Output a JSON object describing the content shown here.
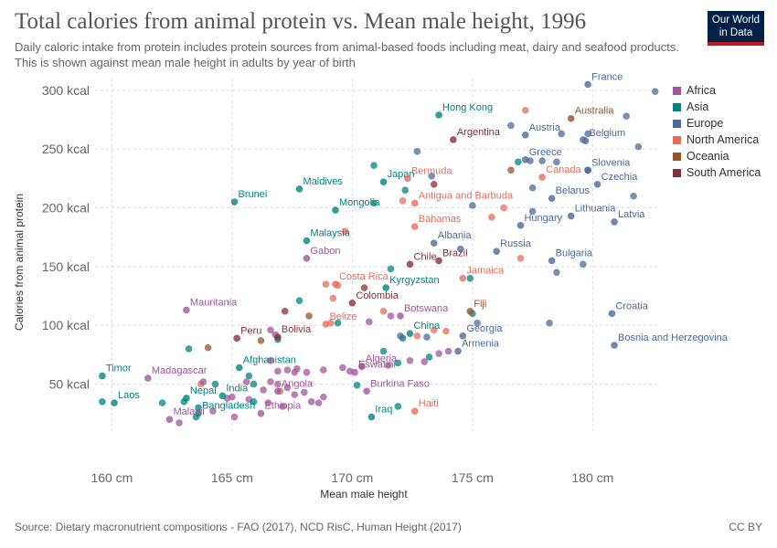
{
  "header": {
    "title": "Total calories from animal protein vs. Mean male height, 1996",
    "subtitle": "Daily caloric intake from protein includes protein sources from animal-based foods including meat, dairy and seafood products. This is shown against mean male height in adults by year of birth",
    "logo_line1": "Our World",
    "logo_line2": "in Data"
  },
  "footer": {
    "source": "Source: Dietary macronutrient compositions - FAO (2017), NCD RisC, Human Height (2017)",
    "license": "CC BY"
  },
  "legend": [
    {
      "name": "Africa",
      "color": "#a2559c"
    },
    {
      "name": "Asia",
      "color": "#00847e"
    },
    {
      "name": "Europe",
      "color": "#4c6a9c"
    },
    {
      "name": "North America",
      "color": "#e56e5a"
    },
    {
      "name": "Oceania",
      "color": "#9a5129"
    },
    {
      "name": "South America",
      "color": "#883039"
    }
  ],
  "colors": {
    "Africa": "#a2559c",
    "Asia": "#00847e",
    "Europe": "#4c6a9c",
    "North America": "#e56e5a",
    "Oceania": "#9a5129",
    "South America": "#883039"
  },
  "chart_data": {
    "type": "scatter",
    "title": "Total calories from animal protein vs. Mean male height, 1996",
    "xlabel": "Mean male height",
    "ylabel": "Calories from animal protein",
    "xlim": [
      159.3,
      182.8
    ],
    "ylim": [
      10,
      310
    ],
    "xticks": [
      160,
      165,
      170,
      175,
      180
    ],
    "xtick_labels": [
      "160 cm",
      "165 cm",
      "170 cm",
      "175 cm",
      "180 cm"
    ],
    "yticks": [
      50,
      100,
      150,
      200,
      250,
      300
    ],
    "ytick_labels": [
      "50 kcal",
      "100 kcal",
      "150 kcal",
      "200 kcal",
      "250 kcal",
      "300 kcal"
    ],
    "grid": true,
    "legend_position": "right",
    "labeled_points": [
      {
        "label": "France",
        "region": "Europe",
        "x": 179.8,
        "y": 305
      },
      {
        "label": "Hong Kong",
        "region": "Asia",
        "x": 173.6,
        "y": 279
      },
      {
        "label": "Australia",
        "region": "Oceania",
        "x": 179.1,
        "y": 276
      },
      {
        "label": "Austria",
        "region": "Europe",
        "x": 177.2,
        "y": 262
      },
      {
        "label": "Argentina",
        "region": "South America",
        "x": 174.2,
        "y": 258
      },
      {
        "label": "Belgium",
        "region": "Europe",
        "x": 179.7,
        "y": 257
      },
      {
        "label": "Greece",
        "region": "Europe",
        "x": 177.2,
        "y": 241
      },
      {
        "label": "Slovenia",
        "region": "Europe",
        "x": 179.8,
        "y": 232
      },
      {
        "label": "Canada",
        "region": "North America",
        "x": 177.9,
        "y": 226
      },
      {
        "label": "Japan",
        "region": "Asia",
        "x": 171.3,
        "y": 222
      },
      {
        "label": "Bermuda",
        "region": "North America",
        "x": 172.3,
        "y": 225
      },
      {
        "label": "Czechia",
        "region": "Europe",
        "x": 180.2,
        "y": 220
      },
      {
        "label": "Maldives",
        "region": "Asia",
        "x": 167.8,
        "y": 216
      },
      {
        "label": "Brunei",
        "region": "Asia",
        "x": 165.1,
        "y": 205
      },
      {
        "label": "Belarus",
        "region": "Europe",
        "x": 178.3,
        "y": 208
      },
      {
        "label": "Antigua and Barbuda",
        "region": "North America",
        "x": 172.6,
        "y": 204
      },
      {
        "label": "Mongolia",
        "region": "Asia",
        "x": 169.3,
        "y": 198
      },
      {
        "label": "Lithuania",
        "region": "Europe",
        "x": 179.1,
        "y": 193
      },
      {
        "label": "Latvia",
        "region": "Europe",
        "x": 180.9,
        "y": 188
      },
      {
        "label": "Hungary",
        "region": "Europe",
        "x": 177.0,
        "y": 185
      },
      {
        "label": "Bahamas",
        "region": "North America",
        "x": 172.6,
        "y": 184
      },
      {
        "label": "Malaysia",
        "region": "Asia",
        "x": 168.1,
        "y": 172
      },
      {
        "label": "Albania",
        "region": "Europe",
        "x": 173.4,
        "y": 170
      },
      {
        "label": "Russia",
        "region": "Europe",
        "x": 176.0,
        "y": 163
      },
      {
        "label": "Gabon",
        "region": "Africa",
        "x": 168.1,
        "y": 157
      },
      {
        "label": "Brazil",
        "region": "South America",
        "x": 173.6,
        "y": 155
      },
      {
        "label": "Bulgaria",
        "region": "Europe",
        "x": 178.3,
        "y": 155
      },
      {
        "label": "Chile",
        "region": "South America",
        "x": 172.4,
        "y": 152
      },
      {
        "label": "Jamaica",
        "region": "North America",
        "x": 174.6,
        "y": 140
      },
      {
        "label": "Costa Rica",
        "region": "North America",
        "x": 169.3,
        "y": 135
      },
      {
        "label": "Kyrgyzstan",
        "region": "Asia",
        "x": 171.4,
        "y": 132
      },
      {
        "label": "Colombia",
        "region": "South America",
        "x": 170.0,
        "y": 119
      },
      {
        "label": "Mauritania",
        "region": "Africa",
        "x": 163.1,
        "y": 113
      },
      {
        "label": "Fiji",
        "region": "Oceania",
        "x": 174.9,
        "y": 112
      },
      {
        "label": "Botswana",
        "region": "Africa",
        "x": 172.0,
        "y": 108
      },
      {
        "label": "Croatia",
        "region": "Europe",
        "x": 180.8,
        "y": 110
      },
      {
        "label": "Belize",
        "region": "North America",
        "x": 168.9,
        "y": 101
      },
      {
        "label": "China",
        "region": "Asia",
        "x": 172.4,
        "y": 93
      },
      {
        "label": "Georgia",
        "region": "Europe",
        "x": 174.6,
        "y": 91
      },
      {
        "label": "Peru",
        "region": "South America",
        "x": 165.2,
        "y": 89
      },
      {
        "label": "Bolivia",
        "region": "South America",
        "x": 166.9,
        "y": 90
      },
      {
        "label": "Bosnia and Herzegovina",
        "region": "Europe",
        "x": 180.9,
        "y": 83
      },
      {
        "label": "Armenia",
        "region": "Europe",
        "x": 174.4,
        "y": 78
      },
      {
        "label": "Afghanistan",
        "region": "Asia",
        "x": 165.3,
        "y": 64
      },
      {
        "label": "Algeria",
        "region": "Africa",
        "x": 170.4,
        "y": 65
      },
      {
        "label": "Eswatini",
        "region": "Africa",
        "x": 170.1,
        "y": 60
      },
      {
        "label": "Timor",
        "region": "Asia",
        "x": 159.6,
        "y": 57
      },
      {
        "label": "Madagascar",
        "region": "Africa",
        "x": 161.5,
        "y": 55
      },
      {
        "label": "India",
        "region": "Asia",
        "x": 164.6,
        "y": 40
      },
      {
        "label": "Angola",
        "region": "Africa",
        "x": 166.9,
        "y": 44
      },
      {
        "label": "Burkina Faso",
        "region": "Africa",
        "x": 170.6,
        "y": 44
      },
      {
        "label": "Laos",
        "region": "Asia",
        "x": 160.1,
        "y": 34
      },
      {
        "label": "Nepal",
        "region": "Asia",
        "x": 163.1,
        "y": 38
      },
      {
        "label": "Haiti",
        "region": "North America",
        "x": 172.6,
        "y": 27
      },
      {
        "label": "Bangladesh",
        "region": "Asia",
        "x": 163.6,
        "y": 25
      },
      {
        "label": "Iraq",
        "region": "Asia",
        "x": 170.8,
        "y": 22
      },
      {
        "label": "Ethiopia",
        "region": "Africa",
        "x": 166.2,
        "y": 25
      },
      {
        "label": "Malawi",
        "region": "Africa",
        "x": 162.4,
        "y": 20
      }
    ],
    "unlabeled_points": [
      {
        "region": "Europe",
        "x": 182.6,
        "y": 299
      },
      {
        "region": "North America",
        "x": 177.2,
        "y": 283
      },
      {
        "region": "Europe",
        "x": 176.6,
        "y": 270
      },
      {
        "region": "Europe",
        "x": 181.4,
        "y": 278
      },
      {
        "region": "Europe",
        "x": 179.8,
        "y": 263
      },
      {
        "region": "Europe",
        "x": 179.6,
        "y": 258
      },
      {
        "region": "Europe",
        "x": 178.7,
        "y": 263
      },
      {
        "region": "Europe",
        "x": 181.9,
        "y": 252
      },
      {
        "region": "Europe",
        "x": 172.7,
        "y": 248
      },
      {
        "region": "Asia",
        "x": 176.9,
        "y": 239
      },
      {
        "region": "Europe",
        "x": 177.4,
        "y": 240
      },
      {
        "region": "Europe",
        "x": 177.9,
        "y": 240
      },
      {
        "region": "Europe",
        "x": 178.5,
        "y": 239
      },
      {
        "region": "Europe",
        "x": 179.8,
        "y": 232
      },
      {
        "region": "Oceania",
        "x": 176.6,
        "y": 232
      },
      {
        "region": "Asia",
        "x": 170.9,
        "y": 236
      },
      {
        "region": "Europe",
        "x": 173.3,
        "y": 227
      },
      {
        "region": "South America",
        "x": 173.4,
        "y": 220
      },
      {
        "region": "Europe",
        "x": 177.5,
        "y": 217
      },
      {
        "region": "Asia",
        "x": 172.2,
        "y": 215
      },
      {
        "region": "Europe",
        "x": 181.7,
        "y": 210
      },
      {
        "region": "North America",
        "x": 172.1,
        "y": 206
      },
      {
        "region": "Europe",
        "x": 175.0,
        "y": 202
      },
      {
        "region": "North America",
        "x": 176.3,
        "y": 200
      },
      {
        "region": "Asia",
        "x": 170.9,
        "y": 204
      },
      {
        "region": "Europe",
        "x": 177.5,
        "y": 197
      },
      {
        "region": "North America",
        "x": 175.8,
        "y": 192
      },
      {
        "region": "North America",
        "x": 169.7,
        "y": 180
      },
      {
        "region": "Europe",
        "x": 174.5,
        "y": 165
      },
      {
        "region": "North America",
        "x": 177.0,
        "y": 157
      },
      {
        "region": "Europe",
        "x": 179.6,
        "y": 152
      },
      {
        "region": "Europe",
        "x": 178.5,
        "y": 145
      },
      {
        "region": "Asia",
        "x": 171.6,
        "y": 148
      },
      {
        "region": "Asia",
        "x": 174.9,
        "y": 140
      },
      {
        "region": "North America",
        "x": 168.9,
        "y": 135
      },
      {
        "region": "North America",
        "x": 169.4,
        "y": 134
      },
      {
        "region": "South America",
        "x": 170.5,
        "y": 132
      },
      {
        "region": "Asia",
        "x": 167.8,
        "y": 121
      },
      {
        "region": "North America",
        "x": 169.2,
        "y": 123
      },
      {
        "region": "South America",
        "x": 167.2,
        "y": 112
      },
      {
        "region": "North America",
        "x": 171.3,
        "y": 112
      },
      {
        "region": "Asia",
        "x": 175.0,
        "y": 110
      },
      {
        "region": "Oceania",
        "x": 168.2,
        "y": 108
      },
      {
        "region": "North America",
        "x": 169.1,
        "y": 102
      },
      {
        "region": "Asia",
        "x": 169.4,
        "y": 102
      },
      {
        "region": "Africa",
        "x": 170.7,
        "y": 103
      },
      {
        "region": "Africa",
        "x": 171.6,
        "y": 108
      },
      {
        "region": "Europe",
        "x": 175.2,
        "y": 102
      },
      {
        "region": "Europe",
        "x": 178.2,
        "y": 102
      },
      {
        "region": "North America",
        "x": 173.4,
        "y": 96
      },
      {
        "region": "North America",
        "x": 173.9,
        "y": 95
      },
      {
        "region": "Asia",
        "x": 172.1,
        "y": 89
      },
      {
        "region": "Europe",
        "x": 173.1,
        "y": 90
      },
      {
        "region": "North America",
        "x": 172.7,
        "y": 91
      },
      {
        "region": "Africa",
        "x": 166.6,
        "y": 96
      },
      {
        "region": "Africa",
        "x": 166.8,
        "y": 92
      },
      {
        "region": "Asia",
        "x": 166.9,
        "y": 88
      },
      {
        "region": "Oceania",
        "x": 166.2,
        "y": 87
      },
      {
        "region": "Oceania",
        "x": 164.0,
        "y": 81
      },
      {
        "region": "Asia",
        "x": 163.2,
        "y": 80
      },
      {
        "region": "Asia",
        "x": 171.3,
        "y": 78
      },
      {
        "region": "Africa",
        "x": 173.6,
        "y": 76
      },
      {
        "region": "Africa",
        "x": 174.0,
        "y": 78
      },
      {
        "region": "Asia",
        "x": 173.2,
        "y": 73
      },
      {
        "region": "Africa",
        "x": 172.4,
        "y": 70
      },
      {
        "region": "Asia",
        "x": 171.9,
        "y": 68
      },
      {
        "region": "Africa",
        "x": 173.0,
        "y": 69
      },
      {
        "region": "Africa",
        "x": 171.5,
        "y": 66
      },
      {
        "region": "Africa",
        "x": 166.6,
        "y": 70
      },
      {
        "region": "Africa",
        "x": 166.9,
        "y": 61
      },
      {
        "region": "Africa",
        "x": 167.3,
        "y": 62
      },
      {
        "region": "Africa",
        "x": 167.7,
        "y": 63
      },
      {
        "region": "Africa",
        "x": 168.1,
        "y": 60
      },
      {
        "region": "Africa",
        "x": 167.6,
        "y": 60
      },
      {
        "region": "Africa",
        "x": 169.9,
        "y": 61
      },
      {
        "region": "Africa",
        "x": 170.4,
        "y": 65
      },
      {
        "region": "Africa",
        "x": 169.6,
        "y": 64
      },
      {
        "region": "Africa",
        "x": 168.8,
        "y": 62
      },
      {
        "region": "Asia",
        "x": 165.7,
        "y": 57
      },
      {
        "region": "Africa",
        "x": 165.6,
        "y": 52
      },
      {
        "region": "Asia",
        "x": 165.9,
        "y": 50
      },
      {
        "region": "Asia",
        "x": 164.3,
        "y": 50
      },
      {
        "region": "North America",
        "x": 163.7,
        "y": 50
      },
      {
        "region": "Africa",
        "x": 163.8,
        "y": 52
      },
      {
        "region": "Africa",
        "x": 166.6,
        "y": 52
      },
      {
        "region": "Africa",
        "x": 166.9,
        "y": 50
      },
      {
        "region": "Asia",
        "x": 170.2,
        "y": 49
      },
      {
        "region": "Africa",
        "x": 167.3,
        "y": 47
      },
      {
        "region": "Africa",
        "x": 166.3,
        "y": 45
      },
      {
        "region": "North America",
        "x": 167.0,
        "y": 44
      },
      {
        "region": "Africa",
        "x": 167.6,
        "y": 41
      },
      {
        "region": "Africa",
        "x": 168.0,
        "y": 43
      },
      {
        "region": "Africa",
        "x": 168.8,
        "y": 39
      },
      {
        "region": "Africa",
        "x": 165.0,
        "y": 39
      },
      {
        "region": "Africa",
        "x": 164.8,
        "y": 38
      },
      {
        "region": "Africa",
        "x": 165.7,
        "y": 37
      },
      {
        "region": "Asia",
        "x": 165.9,
        "y": 35
      },
      {
        "region": "Africa",
        "x": 166.5,
        "y": 34
      },
      {
        "region": "Africa",
        "x": 168.3,
        "y": 35
      },
      {
        "region": "Africa",
        "x": 168.6,
        "y": 34
      },
      {
        "region": "Africa",
        "x": 167.1,
        "y": 31
      },
      {
        "region": "Asia",
        "x": 162.1,
        "y": 34
      },
      {
        "region": "Asia",
        "x": 159.6,
        "y": 35
      },
      {
        "region": "Asia",
        "x": 163.0,
        "y": 35
      },
      {
        "region": "Asia",
        "x": 163.6,
        "y": 30
      },
      {
        "region": "Africa",
        "x": 164.2,
        "y": 27
      },
      {
        "region": "Africa",
        "x": 165.1,
        "y": 22
      },
      {
        "region": "Africa",
        "x": 162.8,
        "y": 17
      },
      {
        "region": "Asia",
        "x": 163.5,
        "y": 22
      },
      {
        "region": "Asia",
        "x": 171.9,
        "y": 31
      },
      {
        "region": "Europe",
        "x": 172.0,
        "y": 91
      }
    ]
  }
}
